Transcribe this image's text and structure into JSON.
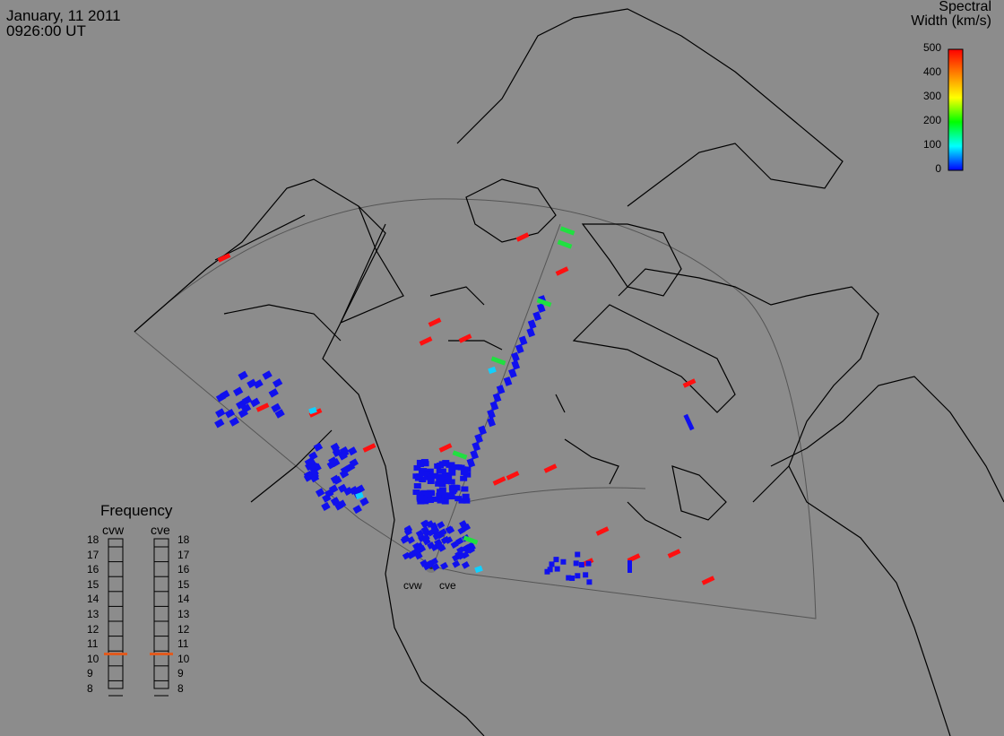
{
  "header": {
    "date": "January, 11 2011",
    "time": "0926:00 UT"
  },
  "colorbar": {
    "title_line1": "Spectral",
    "title_line2": "Width (km/s)",
    "ticks": [
      "500",
      "400",
      "300",
      "200",
      "100",
      "0"
    ],
    "colors": [
      "#ff0000",
      "#ff8000",
      "#ffff00",
      "#00ff00",
      "#00ffff",
      "#0000ff"
    ]
  },
  "frequency": {
    "title": "Frequency",
    "radars": [
      "cvw",
      "cve"
    ],
    "ticks": [
      "18",
      "17",
      "16",
      "15",
      "14",
      "13",
      "12",
      "11",
      "10",
      "9",
      "8"
    ],
    "current_mhz": {
      "cvw": 10.8,
      "cve": 10.8
    },
    "marker_color": "#e05a1e"
  },
  "radar_sites": {
    "west": "cvw",
    "east": "cve"
  },
  "colors": {
    "background": "#8c8c8c",
    "coast": "#000000",
    "fov": "#555555",
    "low": "#1010ee",
    "high": "#ff1010",
    "mid": "#10d0ff",
    "green": "#20e040"
  }
}
